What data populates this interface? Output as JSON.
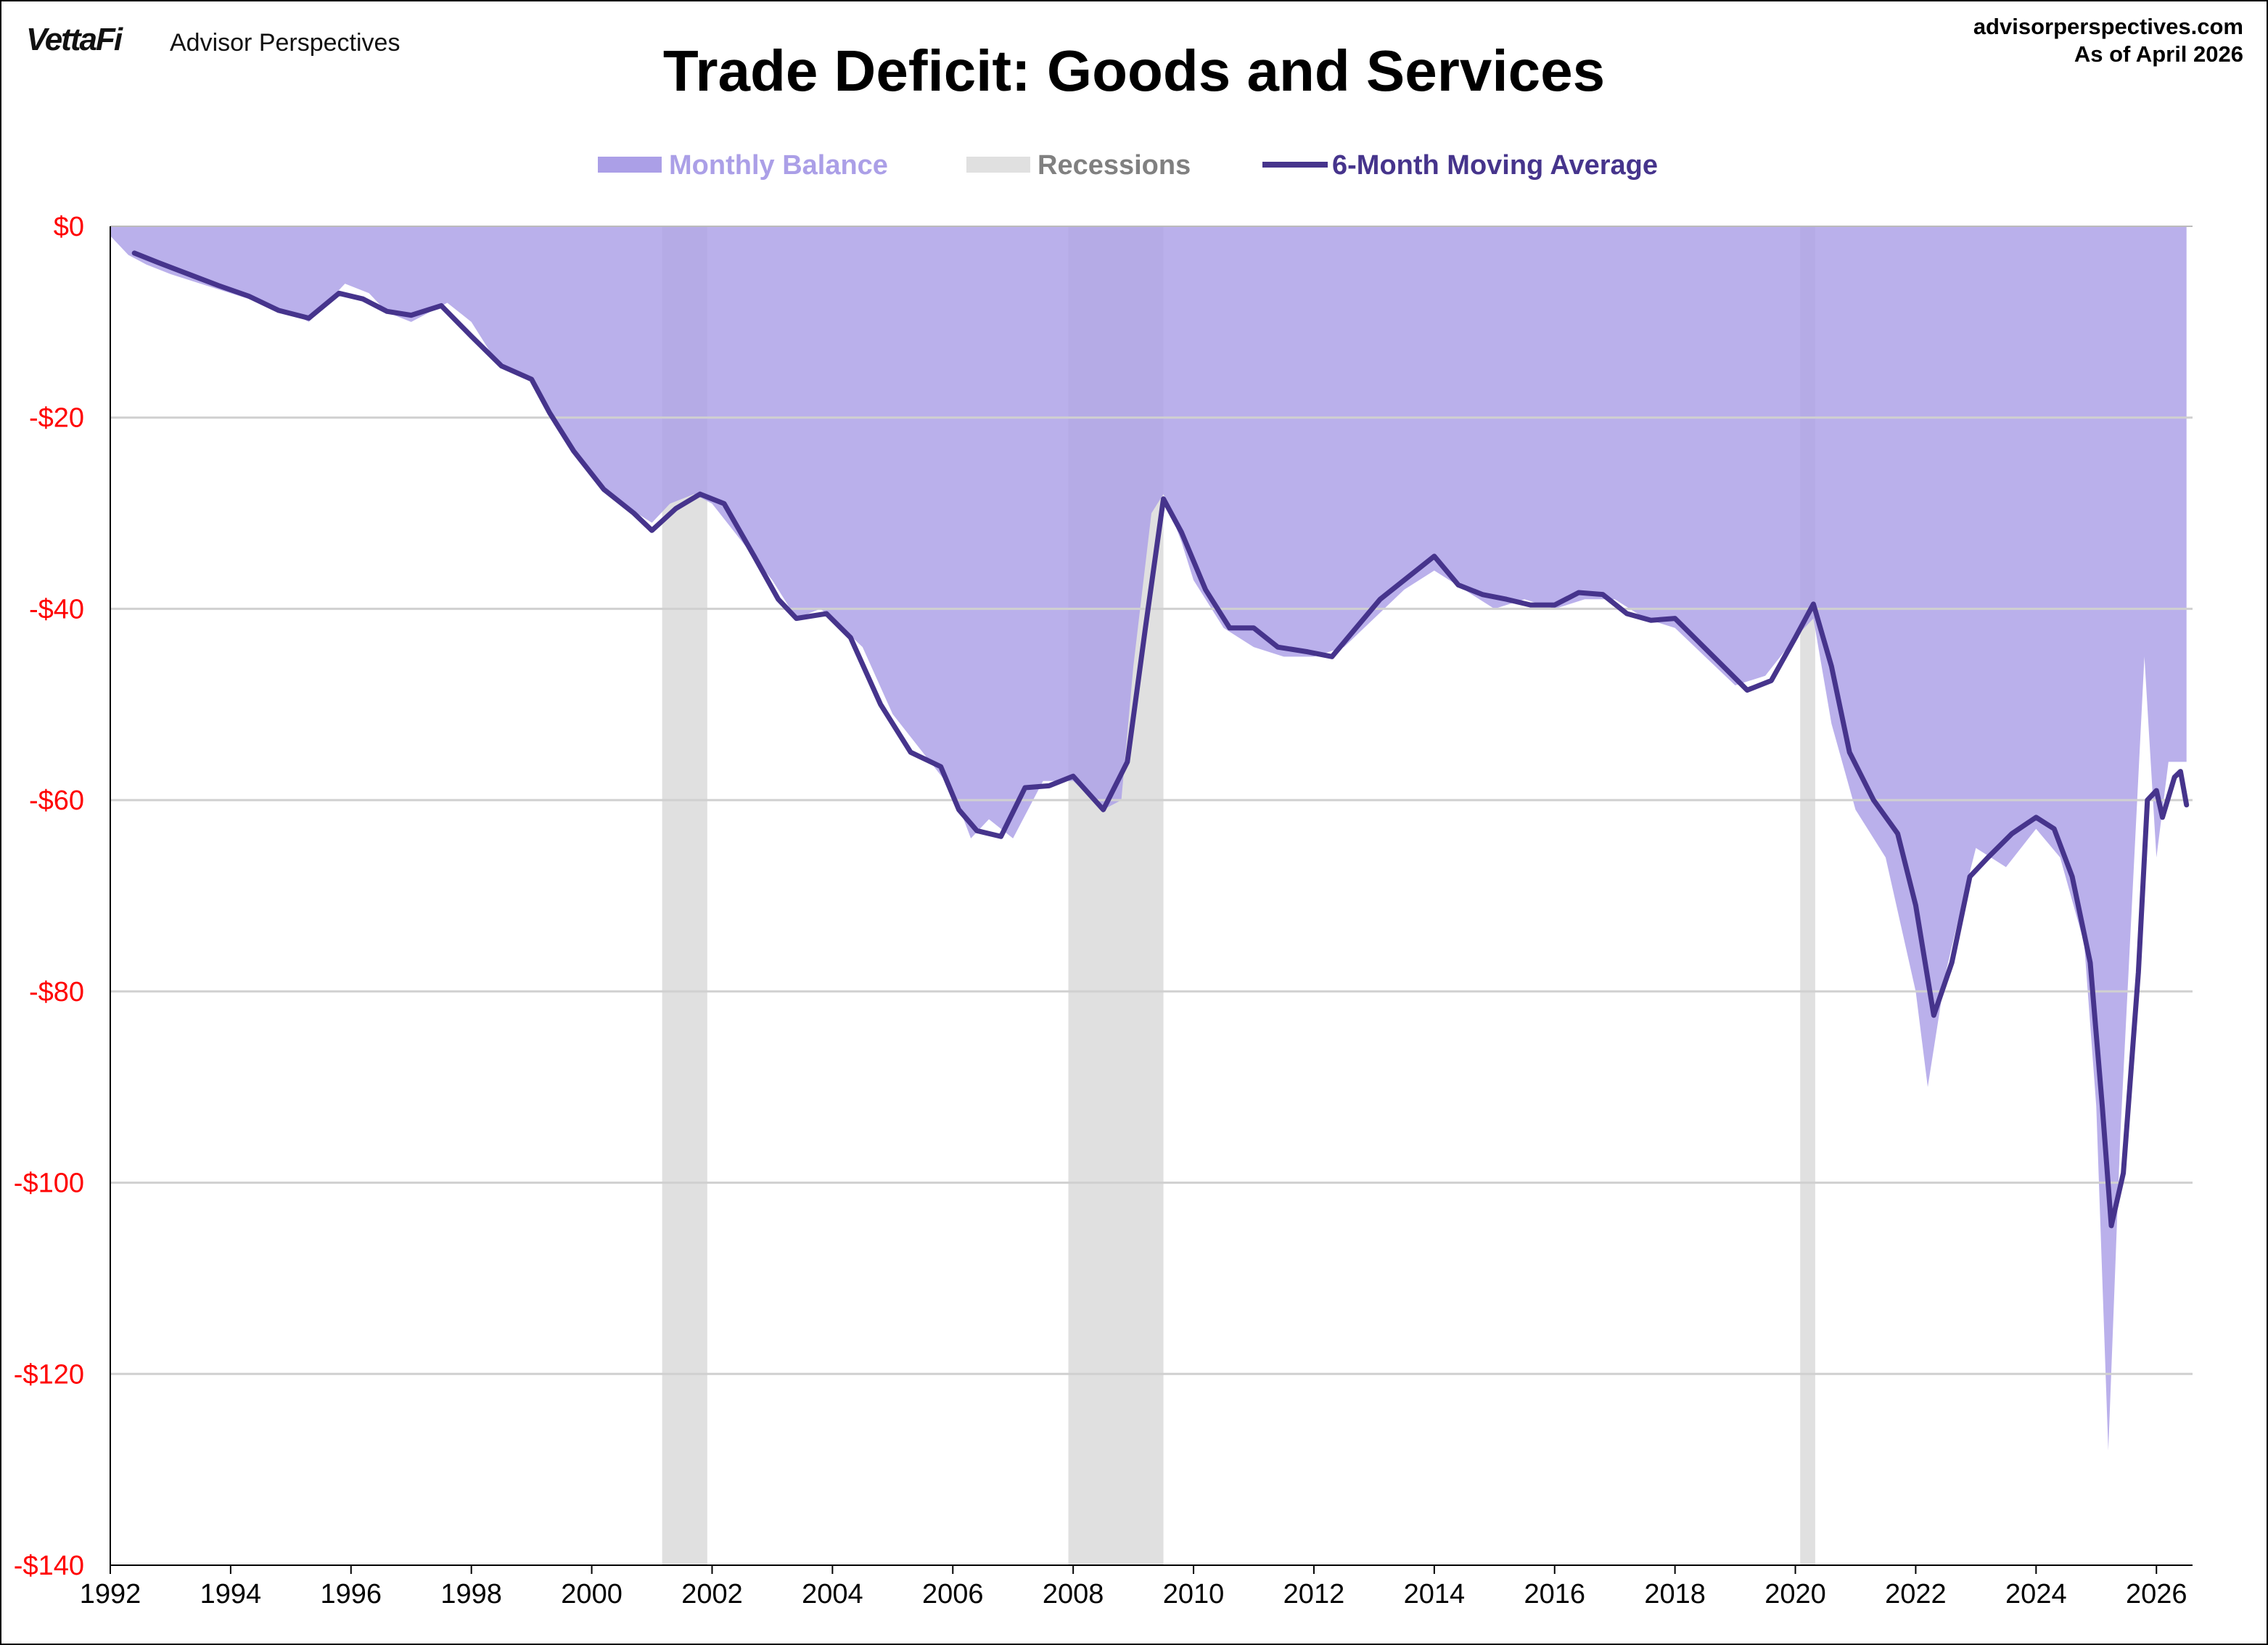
{
  "header": {
    "brand_logo": "VettaFi",
    "brand_name": "Advisor Perspectives",
    "site_url": "advisorperspectives.com",
    "as_of": "As of April 2026"
  },
  "chart_data": {
    "type": "area",
    "title": "Trade Deficit: Goods and Services",
    "xlabel": "",
    "ylabel": "",
    "xlim": [
      1992,
      2026.6
    ],
    "ylim": [
      -140,
      0
    ],
    "x_ticks": [
      "1992",
      "1994",
      "1996",
      "1998",
      "2000",
      "2002",
      "2004",
      "2006",
      "2008",
      "2010",
      "2012",
      "2014",
      "2016",
      "2018",
      "2020",
      "2022",
      "2024",
      "2026"
    ],
    "y_ticks": [
      "$0",
      "-$20",
      "-$40",
      "-$60",
      "-$80",
      "-$100",
      "-$120",
      "-$140"
    ],
    "y_tick_values": [
      0,
      -20,
      -40,
      -60,
      -80,
      -100,
      -120,
      -140
    ],
    "grid": "horizontal",
    "legend_position": "top-center",
    "legend": [
      "Monthly Balance",
      "Recessions",
      "6-Month Moving Average"
    ],
    "colors": {
      "monthly_balance": "#ab9fe7",
      "recessions": "#e0e0e0",
      "moving_average": "#46348c",
      "tick_y": "#ff0000"
    },
    "recessions": [
      [
        2001.17,
        2001.92
      ],
      [
        2007.92,
        2009.5
      ],
      [
        2020.08,
        2020.33
      ]
    ],
    "series": [
      {
        "name": "Monthly Balance",
        "kind": "area",
        "points": [
          [
            1992.0,
            -1
          ],
          [
            1992.3,
            -3
          ],
          [
            1992.6,
            -4
          ],
          [
            1993.0,
            -5
          ],
          [
            1993.5,
            -6
          ],
          [
            1994.0,
            -7
          ],
          [
            1994.5,
            -8
          ],
          [
            1995.0,
            -9
          ],
          [
            1995.3,
            -10
          ],
          [
            1995.6,
            -8
          ],
          [
            1995.9,
            -6
          ],
          [
            1996.3,
            -7
          ],
          [
            1996.6,
            -9
          ],
          [
            1997.0,
            -10
          ],
          [
            1997.3,
            -9
          ],
          [
            1997.6,
            -8
          ],
          [
            1998.0,
            -10
          ],
          [
            1998.3,
            -13
          ],
          [
            1998.6,
            -15
          ],
          [
            1999.0,
            -16
          ],
          [
            1999.3,
            -20
          ],
          [
            1999.6,
            -23
          ],
          [
            2000.0,
            -26
          ],
          [
            2000.5,
            -29
          ],
          [
            2001.0,
            -31
          ],
          [
            2001.3,
            -29
          ],
          [
            2001.7,
            -28
          ],
          [
            2002.0,
            -29
          ],
          [
            2002.5,
            -33
          ],
          [
            2003.0,
            -37
          ],
          [
            2003.4,
            -41
          ],
          [
            2003.8,
            -40
          ],
          [
            2004.0,
            -41
          ],
          [
            2004.5,
            -44
          ],
          [
            2005.0,
            -51
          ],
          [
            2005.5,
            -55
          ],
          [
            2006.0,
            -59
          ],
          [
            2006.3,
            -64
          ],
          [
            2006.6,
            -62
          ],
          [
            2007.0,
            -64
          ],
          [
            2007.5,
            -58
          ],
          [
            2008.0,
            -58
          ],
          [
            2008.5,
            -61
          ],
          [
            2008.8,
            -60
          ],
          [
            2009.0,
            -46
          ],
          [
            2009.3,
            -30
          ],
          [
            2009.5,
            -28
          ],
          [
            2009.8,
            -33
          ],
          [
            2010.0,
            -37
          ],
          [
            2010.5,
            -42
          ],
          [
            2011.0,
            -44
          ],
          [
            2011.5,
            -45
          ],
          [
            2012.0,
            -45
          ],
          [
            2012.5,
            -44
          ],
          [
            2013.0,
            -41
          ],
          [
            2013.5,
            -38
          ],
          [
            2014.0,
            -36
          ],
          [
            2014.5,
            -38
          ],
          [
            2015.0,
            -40
          ],
          [
            2015.5,
            -39
          ],
          [
            2016.0,
            -40
          ],
          [
            2016.5,
            -39
          ],
          [
            2017.0,
            -39
          ],
          [
            2017.5,
            -41
          ],
          [
            2018.0,
            -42
          ],
          [
            2018.5,
            -45
          ],
          [
            2019.0,
            -48
          ],
          [
            2019.5,
            -47
          ],
          [
            2020.0,
            -43
          ],
          [
            2020.3,
            -41
          ],
          [
            2020.6,
            -52
          ],
          [
            2021.0,
            -61
          ],
          [
            2021.5,
            -66
          ],
          [
            2022.0,
            -80
          ],
          [
            2022.2,
            -90
          ],
          [
            2022.5,
            -78
          ],
          [
            2022.8,
            -70
          ],
          [
            2023.0,
            -65
          ],
          [
            2023.5,
            -67
          ],
          [
            2024.0,
            -63
          ],
          [
            2024.4,
            -66
          ],
          [
            2024.8,
            -75
          ],
          [
            2025.0,
            -92
          ],
          [
            2025.2,
            -128
          ],
          [
            2025.4,
            -95
          ],
          [
            2025.6,
            -70
          ],
          [
            2025.8,
            -45
          ],
          [
            2026.0,
            -66
          ],
          [
            2026.2,
            -56
          ],
          [
            2026.5,
            -56
          ],
          [
            2026.5,
            0
          ]
        ]
      },
      {
        "name": "6-Month Moving Average",
        "kind": "line",
        "points": [
          [
            1992.4,
            -2.8
          ],
          [
            1992.8,
            -3.8
          ],
          [
            1993.3,
            -5
          ],
          [
            1993.8,
            -6.2
          ],
          [
            1994.3,
            -7.3
          ],
          [
            1994.8,
            -8.8
          ],
          [
            1995.3,
            -9.6
          ],
          [
            1995.8,
            -7
          ],
          [
            1996.2,
            -7.6
          ],
          [
            1996.6,
            -8.9
          ],
          [
            1997.0,
            -9.3
          ],
          [
            1997.5,
            -8.3
          ],
          [
            1998.0,
            -11.5
          ],
          [
            1998.5,
            -14.6
          ],
          [
            1999.0,
            -16
          ],
          [
            1999.3,
            -19.5
          ],
          [
            1999.7,
            -23.5
          ],
          [
            2000.2,
            -27.5
          ],
          [
            2000.7,
            -30
          ],
          [
            2001.0,
            -31.8
          ],
          [
            2001.4,
            -29.5
          ],
          [
            2001.8,
            -28
          ],
          [
            2002.2,
            -29
          ],
          [
            2002.7,
            -34.5
          ],
          [
            2003.1,
            -39
          ],
          [
            2003.4,
            -41
          ],
          [
            2003.9,
            -40.5
          ],
          [
            2004.3,
            -43
          ],
          [
            2004.8,
            -50
          ],
          [
            2005.3,
            -55
          ],
          [
            2005.8,
            -56.5
          ],
          [
            2006.1,
            -61
          ],
          [
            2006.4,
            -63.2
          ],
          [
            2006.8,
            -63.8
          ],
          [
            2007.2,
            -58.7
          ],
          [
            2007.6,
            -58.5
          ],
          [
            2008.0,
            -57.5
          ],
          [
            2008.5,
            -61
          ],
          [
            2008.9,
            -56
          ],
          [
            2009.2,
            -42
          ],
          [
            2009.5,
            -28.5
          ],
          [
            2009.8,
            -32
          ],
          [
            2010.2,
            -38
          ],
          [
            2010.6,
            -42
          ],
          [
            2011.0,
            -42
          ],
          [
            2011.4,
            -44
          ],
          [
            2011.9,
            -44.5
          ],
          [
            2012.3,
            -45
          ],
          [
            2012.7,
            -42
          ],
          [
            2013.1,
            -39
          ],
          [
            2013.6,
            -36.5
          ],
          [
            2014.0,
            -34.5
          ],
          [
            2014.4,
            -37.5
          ],
          [
            2014.8,
            -38.5
          ],
          [
            2015.2,
            -39
          ],
          [
            2015.6,
            -39.6
          ],
          [
            2016.0,
            -39.6
          ],
          [
            2016.4,
            -38.3
          ],
          [
            2016.8,
            -38.5
          ],
          [
            2017.2,
            -40.5
          ],
          [
            2017.6,
            -41.2
          ],
          [
            2018.0,
            -41
          ],
          [
            2018.4,
            -43.5
          ],
          [
            2018.8,
            -46
          ],
          [
            2019.2,
            -48.5
          ],
          [
            2019.6,
            -47.5
          ],
          [
            2020.0,
            -43
          ],
          [
            2020.3,
            -39.5
          ],
          [
            2020.6,
            -46
          ],
          [
            2020.9,
            -55
          ],
          [
            2021.3,
            -60
          ],
          [
            2021.7,
            -63.5
          ],
          [
            2022.0,
            -71
          ],
          [
            2022.3,
            -82.5
          ],
          [
            2022.6,
            -77
          ],
          [
            2022.9,
            -68
          ],
          [
            2023.2,
            -66
          ],
          [
            2023.6,
            -63.5
          ],
          [
            2024.0,
            -61.8
          ],
          [
            2024.3,
            -63
          ],
          [
            2024.6,
            -68
          ],
          [
            2024.9,
            -77
          ],
          [
            2025.1,
            -92
          ],
          [
            2025.25,
            -104.5
          ],
          [
            2025.45,
            -99
          ],
          [
            2025.7,
            -78
          ],
          [
            2025.85,
            -60
          ],
          [
            2026.0,
            -59
          ],
          [
            2026.1,
            -61.8
          ],
          [
            2026.3,
            -57.6
          ],
          [
            2026.4,
            -57
          ],
          [
            2026.5,
            -60.5
          ]
        ]
      }
    ]
  }
}
